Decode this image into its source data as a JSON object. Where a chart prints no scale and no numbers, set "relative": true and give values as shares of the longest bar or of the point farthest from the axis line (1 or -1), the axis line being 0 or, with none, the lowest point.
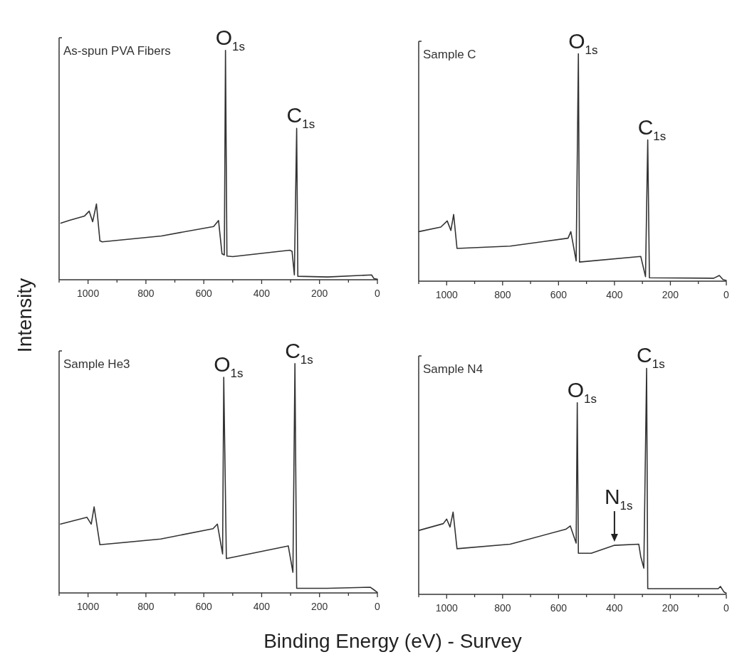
{
  "chart_data": [
    {
      "type": "line",
      "title": "As-spun PVA Fibers",
      "ylabel": "Intensity",
      "relative": true,
      "tick_labels": "x",
      "xlim": [
        1100,
        0
      ],
      "xticks": [
        {
          "value": 1100,
          "label": null
        },
        1000,
        {
          "value": 900,
          "label": null
        },
        800,
        {
          "value": 700,
          "label": null
        },
        600,
        {
          "value": 500,
          "label": null
        },
        400,
        {
          "value": 300,
          "label": null
        },
        200,
        {
          "value": 100,
          "label": null
        },
        0
      ],
      "series": [
        {
          "color": "#333333",
          "x": [
            1094,
            1066,
            1012,
            996,
            984,
            971,
            959,
            951,
            746,
            566,
            549,
            537,
            529,
            525,
            520,
            500,
            303,
            295,
            287,
            279,
            275,
            172,
            20,
            12,
            0
          ],
          "values": [
            0.247,
            0.258,
            0.278,
            0.299,
            0.253,
            0.33,
            0.17,
            0.165,
            0.191,
            0.232,
            0.258,
            0.113,
            0.108,
            1.0,
            0.103,
            0.101,
            0.129,
            0.124,
            0.021,
            0.66,
            0.015,
            0.012,
            0.021,
            0.005,
            0.002
          ]
        }
      ],
      "annotations": [
        {
          "text": "O$_{1s}$",
          "x": 525,
          "y": 1.0
        },
        {
          "text": "C$_{1s}$",
          "x": 279,
          "y": 0.66
        }
      ]
    },
    {
      "type": "line",
      "title": "Sample C",
      "relative": true,
      "tick_labels": "x",
      "xlim": [
        1100,
        0
      ],
      "xticks": [
        {
          "value": 1100,
          "label": null
        },
        1000,
        {
          "value": 900,
          "label": null
        },
        800,
        {
          "value": 700,
          "label": null
        },
        600,
        {
          "value": 500,
          "label": null
        },
        400,
        {
          "value": 300,
          "label": null
        },
        200,
        {
          "value": 100,
          "label": null
        },
        0
      ],
      "series": [
        {
          "color": "#333333",
          "x": [
            1099,
            1021,
            998,
            985,
            975,
            963,
            773,
            566,
            556,
            537,
            529,
            525,
            306,
            289,
            281,
            275,
            45,
            25,
            12,
            0
          ],
          "values": [
            0.218,
            0.238,
            0.265,
            0.223,
            0.293,
            0.144,
            0.154,
            0.189,
            0.218,
            0.089,
            1.0,
            0.084,
            0.109,
            0.02,
            0.621,
            0.015,
            0.013,
            0.025,
            0.007,
            0.003
          ]
        }
      ],
      "annotations": [
        {
          "text": "O$_{1s}$",
          "x": 529,
          "y": 1.0
        },
        {
          "text": "C$_{1s}$",
          "x": 281,
          "y": 0.621
        }
      ]
    },
    {
      "type": "line",
      "title": "Sample He3",
      "xlabel": "Binding Energy (eV) - Survey",
      "relative": true,
      "tick_labels": "x",
      "xlim": [
        1100,
        0
      ],
      "xticks": [
        {
          "value": 1100,
          "label": null
        },
        1000,
        {
          "value": 900,
          "label": null
        },
        800,
        {
          "value": 700,
          "label": null
        },
        600,
        {
          "value": 500,
          "label": null
        },
        400,
        {
          "value": 300,
          "label": null
        },
        200,
        {
          "value": 100,
          "label": null
        },
        0
      ],
      "series": [
        {
          "color": "#333333",
          "x": [
            1095,
            1004,
            989,
            979,
            959,
            749,
            568,
            553,
            535,
            531,
            522,
            308,
            292,
            285,
            279,
            173,
            25,
            8,
            0
          ],
          "values": [
            0.3,
            0.33,
            0.3,
            0.375,
            0.21,
            0.235,
            0.28,
            0.3,
            0.17,
            0.94,
            0.15,
            0.205,
            0.09,
            1.0,
            0.02,
            0.02,
            0.025,
            0.01,
            0.002
          ]
        }
      ],
      "annotations": [
        {
          "text": "O$_{1s}$",
          "x": 531,
          "y": 0.94
        },
        {
          "text": "C$_{1s}$",
          "x": 285,
          "y": 1.0
        }
      ]
    },
    {
      "type": "line",
      "title": "Sample N4",
      "relative": true,
      "tick_labels": "x",
      "xlim": [
        1100,
        0
      ],
      "xticks": [
        {
          "value": 1100,
          "label": null
        },
        1000,
        {
          "value": 900,
          "label": null
        },
        800,
        {
          "value": 700,
          "label": null
        },
        600,
        {
          "value": 500,
          "label": null
        },
        400,
        {
          "value": 300,
          "label": null
        },
        200,
        {
          "value": 100,
          "label": null
        },
        0
      ],
      "series": [
        {
          "color": "#333333",
          "x": [
            1099,
            1012,
            1000,
            988,
            977,
            963,
            773,
            574,
            558,
            537,
            533,
            529,
            483,
            400,
            313,
            306,
            295,
            285,
            281,
            29,
            21,
            8,
            0
          ],
          "values": [
            0.283,
            0.313,
            0.333,
            0.298,
            0.364,
            0.202,
            0.222,
            0.288,
            0.303,
            0.227,
            0.848,
            0.182,
            0.182,
            0.217,
            0.222,
            0.167,
            0.116,
            1.0,
            0.025,
            0.025,
            0.035,
            0.01,
            0.005
          ]
        }
      ],
      "annotations": [
        {
          "text": "O$_{1s}$",
          "x": 533,
          "y": 0.848
        },
        {
          "text": "N$_{1s}$",
          "x": 400,
          "y": 0.217
        },
        {
          "text": "C$_{1s}$",
          "x": 285,
          "y": 1.0
        }
      ]
    }
  ]
}
